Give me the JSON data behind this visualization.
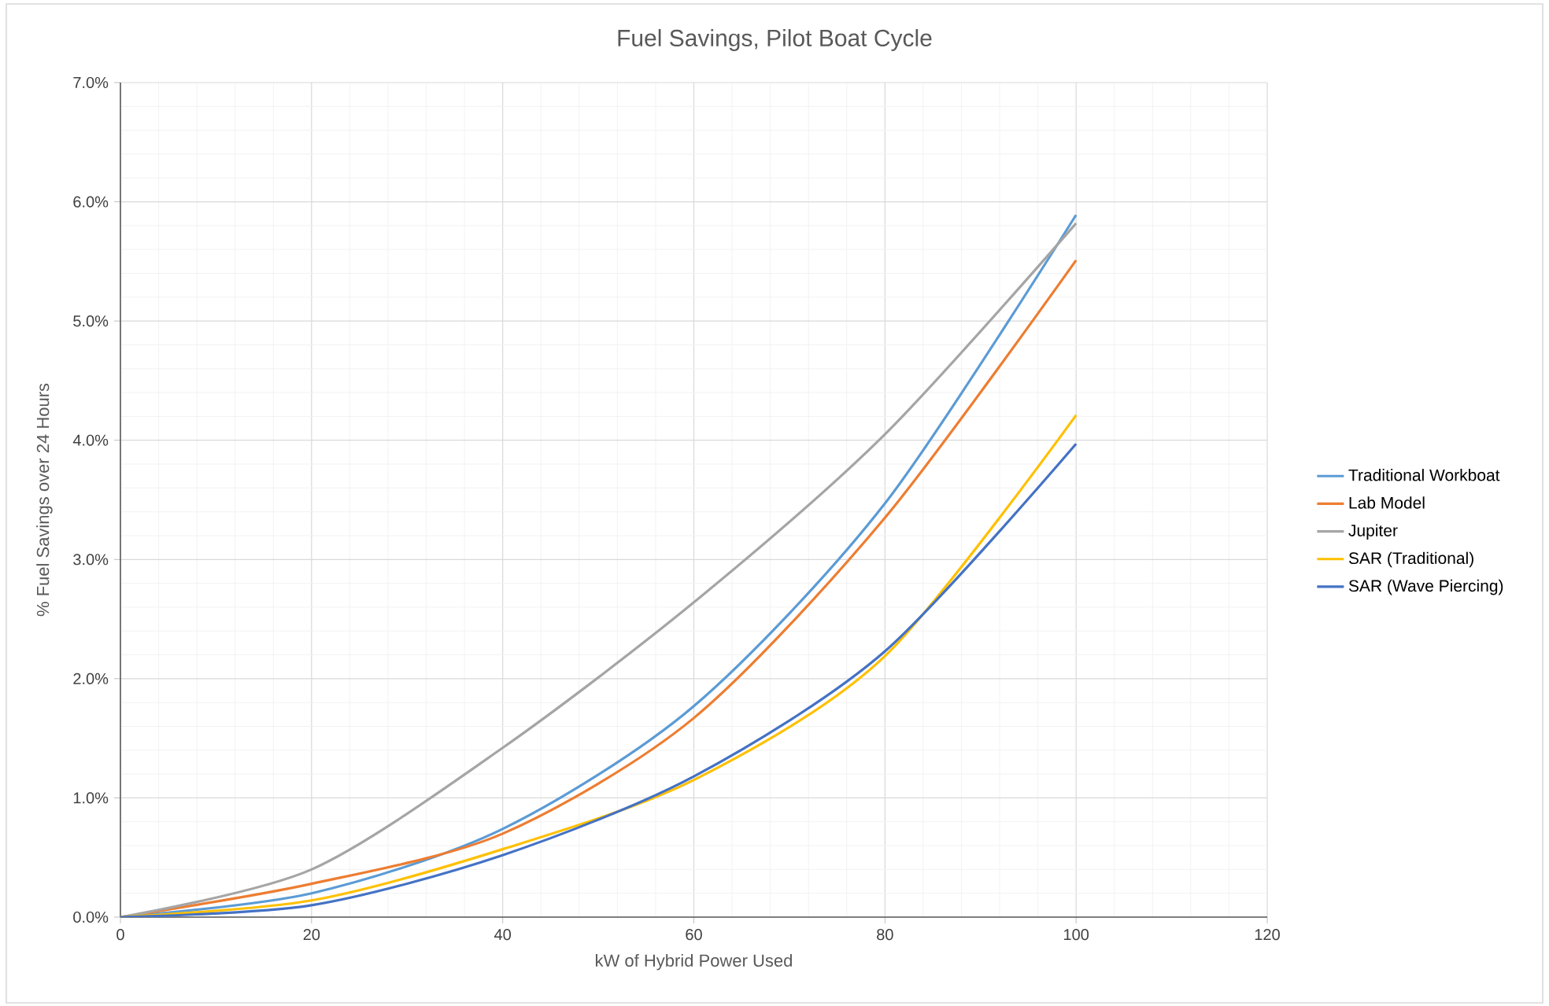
{
  "chart_data": {
    "type": "line",
    "title": "Fuel Savings, Pilot Boat Cycle",
    "xlabel": "kW of Hybrid Power Used",
    "ylabel": "% Fuel Savings over 24 Hours",
    "x": [
      0,
      20,
      40,
      60,
      80,
      100
    ],
    "series": [
      {
        "name": "Traditional Workboat",
        "color": "#5b9bd5",
        "values": [
          0,
          0.2,
          0.74,
          1.77,
          3.47,
          5.89
        ]
      },
      {
        "name": "Lab Model",
        "color": "#ed7d31",
        "values": [
          0,
          0.28,
          0.7,
          1.67,
          3.35,
          5.51
        ]
      },
      {
        "name": "Jupiter",
        "color": "#a5a5a5",
        "values": [
          0,
          0.4,
          1.42,
          2.64,
          4.05,
          5.82
        ]
      },
      {
        "name": "SAR (Traditional)",
        "color": "#ffc000",
        "values": [
          0,
          0.14,
          0.57,
          1.15,
          2.19,
          4.21
        ]
      },
      {
        "name": "SAR (Wave Piercing)",
        "color": "#4472c4",
        "values": [
          0,
          0.1,
          0.52,
          1.18,
          2.23,
          3.97
        ]
      }
    ],
    "xlim": [
      0,
      120
    ],
    "xticks": [
      0,
      20,
      40,
      60,
      80,
      100,
      120
    ],
    "ylim": [
      0,
      7
    ],
    "yticks": [
      {
        "value": 0,
        "label": "0.0%"
      },
      {
        "value": 1,
        "label": "1.0%"
      },
      {
        "value": 2,
        "label": "2.0%"
      },
      {
        "value": 3,
        "label": "3.0%"
      },
      {
        "value": 4,
        "label": "4.0%"
      },
      {
        "value": 5,
        "label": "5.0%"
      },
      {
        "value": 6,
        "label": "6.0%"
      },
      {
        "value": 7,
        "label": "7.0%"
      }
    ],
    "grid": true,
    "legend": "right",
    "marker": "none",
    "line_style": "solid"
  }
}
